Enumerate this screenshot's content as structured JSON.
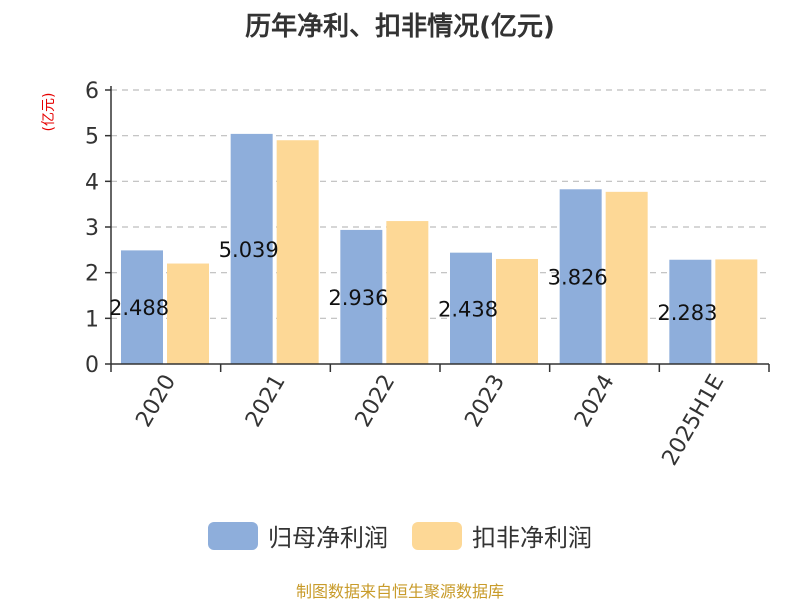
{
  "chart_data": {
    "type": "bar",
    "title": "历年净利、扣非情况(亿元)",
    "unit_label": "(亿元)",
    "categories": [
      "2020",
      "2021",
      "2022",
      "2023",
      "2024",
      "2025H1E"
    ],
    "series": [
      {
        "name": "归母净利润",
        "color": "#8eaedb",
        "values": [
          2.488,
          5.039,
          2.936,
          2.438,
          3.826,
          2.283
        ],
        "labels": [
          "2.488",
          "5.039",
          "2.936",
          "2.438",
          "3.826",
          "2.283"
        ]
      },
      {
        "name": "扣非净利润",
        "color": "#fdd896",
        "values": [
          2.2,
          4.9,
          3.13,
          2.3,
          3.77,
          2.29
        ]
      }
    ],
    "ylim": [
      0,
      6
    ],
    "yticks": [
      0,
      1,
      2,
      3,
      4,
      5,
      6
    ],
    "grid": true,
    "legend_position": "bottom"
  },
  "footer": {
    "source": "制图数据来自恒生聚源数据库"
  }
}
